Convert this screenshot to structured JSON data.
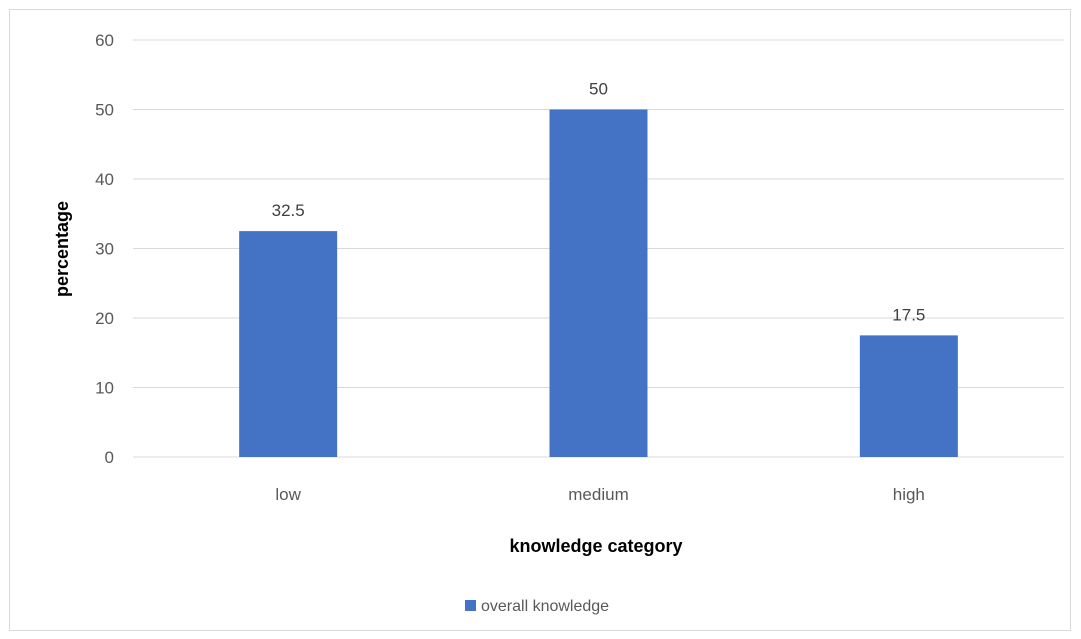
{
  "chart_data": {
    "type": "bar",
    "title": "",
    "xlabel": "knowledge category",
    "ylabel": "percentage",
    "categories": [
      "low",
      "medium",
      "high"
    ],
    "series": [
      {
        "name": "overall knowledge",
        "values": [
          32.5,
          50,
          17.5
        ],
        "color": "#4472C4"
      }
    ],
    "data_labels": [
      "32.5",
      "50",
      "17.5"
    ],
    "ylim": [
      0,
      60
    ],
    "yticks": [
      0,
      10,
      20,
      30,
      40,
      50,
      60
    ],
    "grid": true,
    "legend_position": "bottom"
  }
}
